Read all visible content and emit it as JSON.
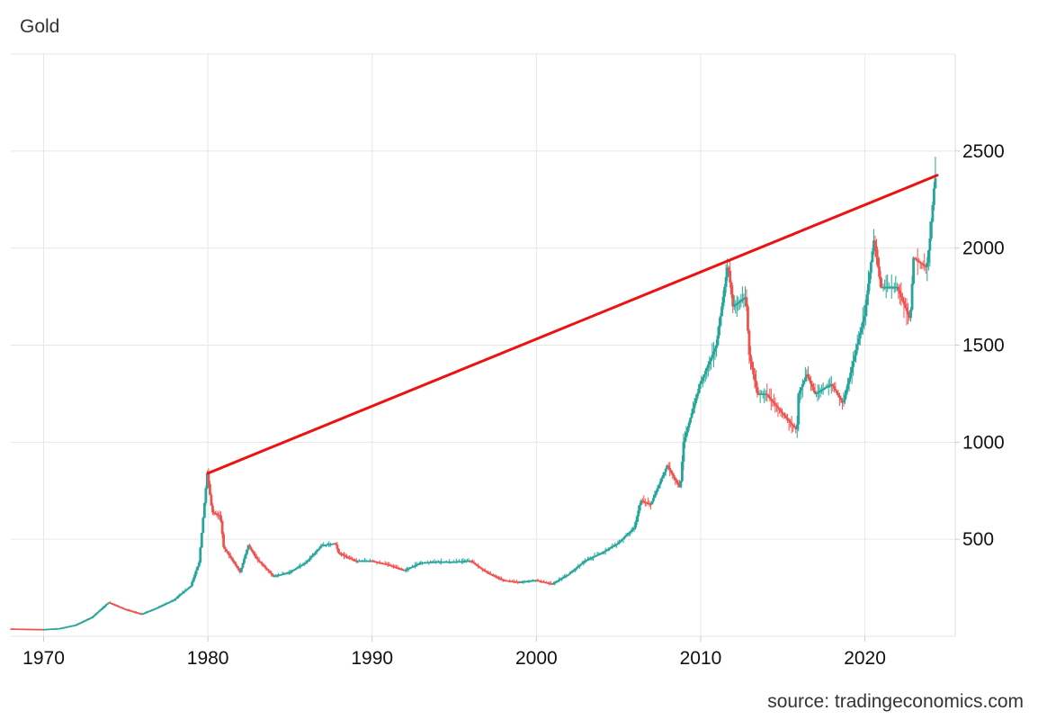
{
  "title": "Gold",
  "source": "source: tradingeconomics.com",
  "colors": {
    "up": "#26a69a",
    "down": "#ef5350",
    "trendline": "#ee1111",
    "grid": "#e6e6e6"
  },
  "chart_data": {
    "type": "line",
    "title": "Gold",
    "xlabel": "",
    "ylabel": "",
    "x_ticks": [
      1970,
      1980,
      1990,
      2000,
      2010,
      2020
    ],
    "y_ticks": [
      500,
      1000,
      1500,
      2000,
      2500
    ],
    "xlim": [
      1968,
      2025.5
    ],
    "ylim": [
      0,
      3000
    ],
    "grid": true,
    "series": [
      {
        "style": "candlestick",
        "x": [
          1968,
          1970,
          1971,
          1972,
          1973,
          1974,
          1975,
          1976,
          1977,
          1978,
          1979,
          1979.5,
          1980,
          1980.3,
          1980.8,
          1981,
          1982,
          1982.5,
          1983,
          1984,
          1985,
          1986,
          1987,
          1987.8,
          1988,
          1989,
          1990,
          1991,
          1992,
          1993,
          1994,
          1995,
          1996,
          1997,
          1998,
          1999,
          2000,
          2001,
          2002,
          2003,
          2004,
          2005,
          2006,
          2006.4,
          2007,
          2008,
          2008.8,
          2009,
          2010,
          2011,
          2011.7,
          2012,
          2012.8,
          2013,
          2013.5,
          2014,
          2015,
          2015.9,
          2016,
          2016.5,
          2017,
          2018,
          2018.7,
          2019,
          2020,
          2020.6,
          2021,
          2022,
          2022.8,
          2023,
          2023.8,
          2024,
          2024.3
        ],
        "values": [
          40,
          37,
          42,
          60,
          100,
          175,
          140,
          115,
          150,
          190,
          260,
          380,
          840,
          640,
          620,
          460,
          330,
          470,
          400,
          310,
          330,
          380,
          470,
          480,
          430,
          390,
          390,
          370,
          340,
          380,
          385,
          385,
          390,
          330,
          290,
          280,
          290,
          270,
          320,
          390,
          430,
          480,
          560,
          700,
          680,
          880,
          760,
          1000,
          1300,
          1500,
          1920,
          1700,
          1750,
          1450,
          1250,
          1250,
          1150,
          1060,
          1250,
          1350,
          1250,
          1300,
          1200,
          1300,
          1650,
          2050,
          1800,
          1800,
          1630,
          1950,
          1900,
          2050,
          2360
        ]
      },
      {
        "style": "trendline",
        "x": [
          1980.0,
          2024.4
        ],
        "values": [
          840,
          2375
        ]
      }
    ]
  }
}
